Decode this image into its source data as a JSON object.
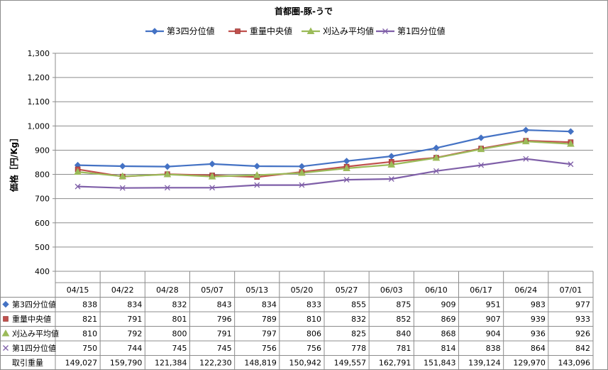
{
  "chart_data": {
    "type": "line",
    "title": "首都圏-豚-うで",
    "ylabel": "価格［円/Kg］",
    "ylim": [
      400,
      1300
    ],
    "yticks": [
      "400",
      "500",
      "600",
      "700",
      "800",
      "900",
      "1,000",
      "1,100",
      "1,200",
      "1,300"
    ],
    "categories": [
      "04/15",
      "04/22",
      "04/28",
      "05/07",
      "05/13",
      "05/20",
      "05/27",
      "06/03",
      "06/10",
      "06/17",
      "06/24",
      "07/01"
    ],
    "grid": true,
    "legend_position": "top",
    "series": [
      {
        "name": "第3四分位値",
        "color": "#4472c4",
        "marker": "diamond",
        "values": [
          838,
          834,
          832,
          843,
          834,
          833,
          855,
          875,
          909,
          951,
          983,
          977
        ]
      },
      {
        "name": "重量中央値",
        "color": "#c0504d",
        "marker": "square",
        "values": [
          821,
          791,
          801,
          796,
          789,
          810,
          832,
          852,
          869,
          907,
          939,
          933
        ]
      },
      {
        "name": "刈込み平均値",
        "color": "#9bbb59",
        "marker": "triangle",
        "values": [
          810,
          792,
          800,
          791,
          797,
          806,
          825,
          840,
          868,
          904,
          936,
          926
        ]
      },
      {
        "name": "第1四分位値",
        "color": "#7f5fa8",
        "marker": "x",
        "values": [
          750,
          744,
          745,
          745,
          756,
          756,
          778,
          781,
          814,
          838,
          864,
          842
        ]
      }
    ],
    "table_extra_row": {
      "label": "取引重量",
      "values": [
        "149,027",
        "159,790",
        "121,384",
        "122,230",
        "148,819",
        "150,942",
        "149,557",
        "162,791",
        "151,843",
        "139,124",
        "129,970",
        "143,096"
      ]
    }
  }
}
